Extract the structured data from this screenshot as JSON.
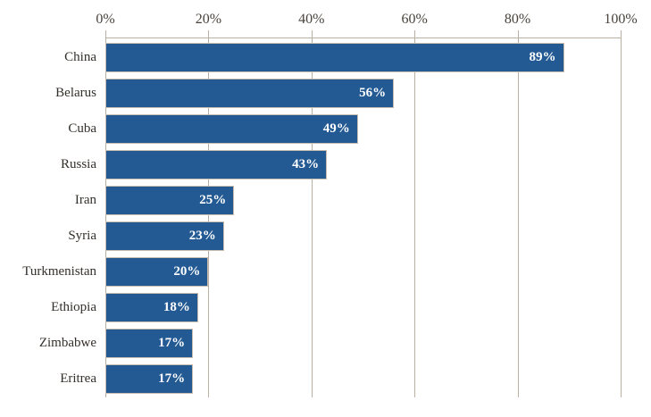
{
  "chart_data": {
    "type": "bar",
    "orientation": "horizontal",
    "title": "",
    "xlabel": "",
    "ylabel": "",
    "categories": [
      "China",
      "Belarus",
      "Cuba",
      "Russia",
      "Iran",
      "Syria",
      "Turkmenistan",
      "Ethiopia",
      "Zimbabwe",
      "Eritrea"
    ],
    "values": [
      89,
      56,
      49,
      43,
      25,
      23,
      20,
      18,
      17,
      17
    ],
    "value_labels": [
      "89%",
      "56%",
      "49%",
      "43%",
      "25%",
      "23%",
      "20%",
      "18%",
      "17%",
      "17%"
    ],
    "xlim": [
      0,
      100
    ],
    "x_ticks": [
      "0%",
      "20%",
      "40%",
      "60%",
      "80%",
      "100%"
    ],
    "x_tick_values": [
      0,
      20,
      40,
      60,
      80,
      100
    ],
    "grid": true,
    "legend": false,
    "axis_position": "top",
    "colors": {
      "bar_fill": "#235a93",
      "bar_border": "#c9bdb0",
      "gridline": "#b9afa3",
      "axis_text": "#4a433c",
      "category_text": "#332f2b",
      "value_text": "#ffffff",
      "background": "#ffffff"
    }
  }
}
